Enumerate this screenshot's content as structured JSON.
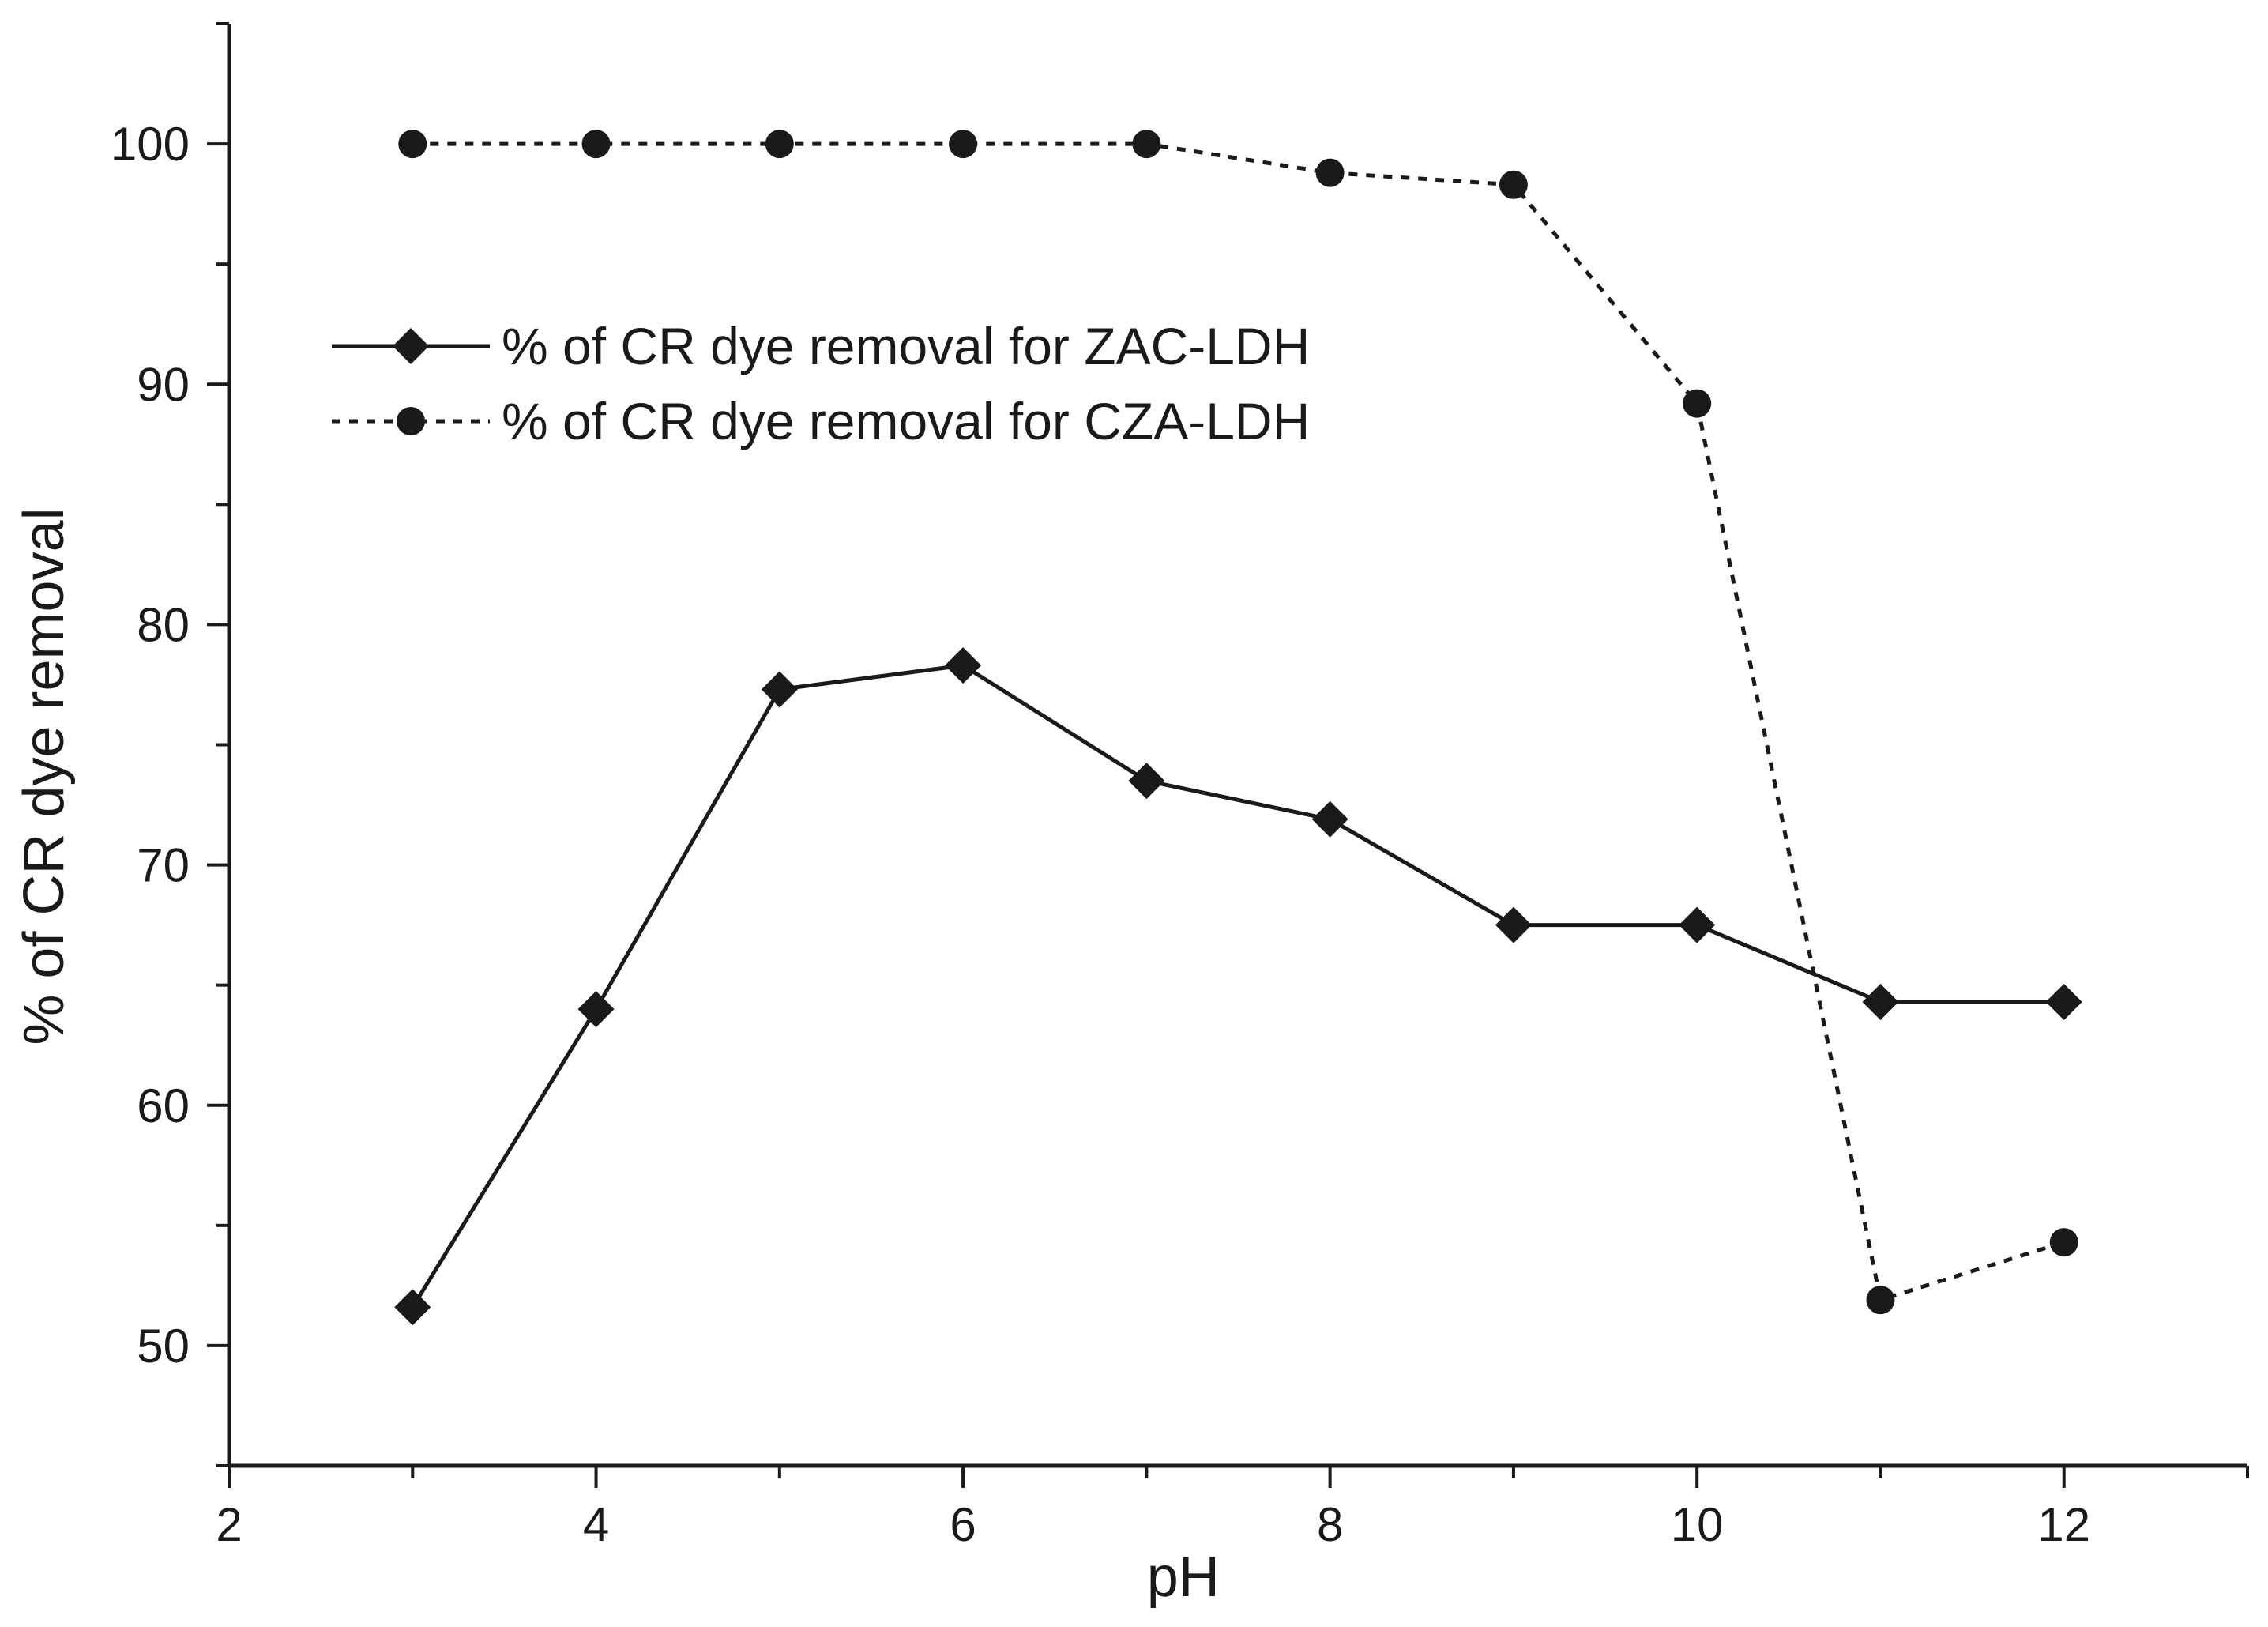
{
  "chart_data": {
    "type": "line",
    "xlabel": "pH",
    "ylabel": "% of CR dye removal",
    "xlim": [
      2,
      13
    ],
    "ylim": [
      45,
      105
    ],
    "xticks": [
      2,
      4,
      6,
      8,
      10,
      12
    ],
    "yticks": [
      50,
      60,
      70,
      80,
      90,
      100
    ],
    "grid": false,
    "legend_position": "upper-left",
    "series": [
      {
        "name": "% of CR dye removal for ZAC-LDH",
        "line_style": "solid",
        "marker": "diamond",
        "color": "#1a1a1a",
        "x": [
          3,
          4,
          5,
          6,
          7,
          8,
          9,
          10,
          11,
          12
        ],
        "y": [
          51.6,
          64.0,
          77.3,
          78.3,
          73.5,
          71.9,
          67.5,
          67.5,
          64.3,
          64.3
        ]
      },
      {
        "name": "% of CR dye removal for CZA-LDH",
        "line_style": "dotted",
        "marker": "circle",
        "color": "#1a1a1a",
        "x": [
          3,
          4,
          5,
          6,
          7,
          8,
          9,
          10,
          11,
          12
        ],
        "y": [
          100.0,
          100.0,
          100.0,
          100.0,
          100.0,
          98.8,
          98.3,
          89.2,
          51.9,
          54.3
        ]
      }
    ]
  }
}
